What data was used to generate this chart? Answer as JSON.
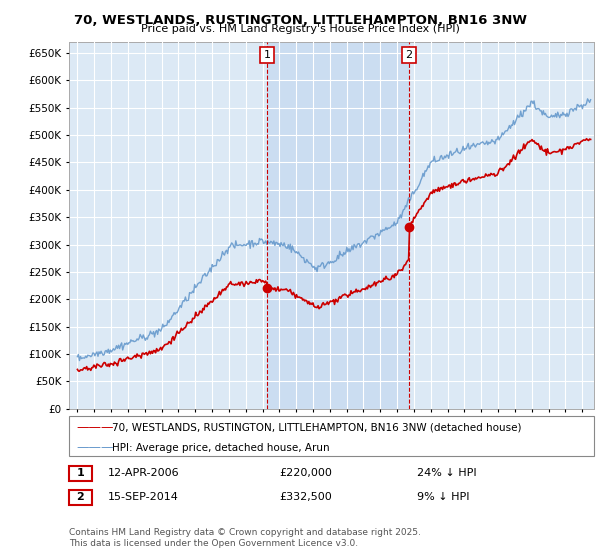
{
  "title": "70, WESTLANDS, RUSTINGTON, LITTLEHAMPTON, BN16 3NW",
  "subtitle": "Price paid vs. HM Land Registry's House Price Index (HPI)",
  "ylim": [
    0,
    670000
  ],
  "yticks": [
    0,
    50000,
    100000,
    150000,
    200000,
    250000,
    300000,
    350000,
    400000,
    450000,
    500000,
    550000,
    600000,
    650000
  ],
  "plot_bg_color": "#dce9f5",
  "highlight_color": "#c5d9f0",
  "grid_color": "#ffffff",
  "legend_entry1": "70, WESTLANDS, RUSTINGTON, LITTLEHAMPTON, BN16 3NW (detached house)",
  "legend_entry2": "HPI: Average price, detached house, Arun",
  "marker1_label": "1",
  "marker1_date": "12-APR-2006",
  "marker1_price": "£220,000",
  "marker1_hpi": "24% ↓ HPI",
  "marker1_x": 2006.28,
  "marker1_y": 220000,
  "marker2_label": "2",
  "marker2_date": "15-SEP-2014",
  "marker2_price": "£332,500",
  "marker2_hpi": "9% ↓ HPI",
  "marker2_x": 2014.71,
  "marker2_y": 332500,
  "footer": "Contains HM Land Registry data © Crown copyright and database right 2025.\nThis data is licensed under the Open Government Licence v3.0.",
  "line_color_property": "#cc0000",
  "line_color_hpi": "#6699cc",
  "marker_box_border": "#cc0000",
  "xmin": 1995,
  "xmax": 2025
}
